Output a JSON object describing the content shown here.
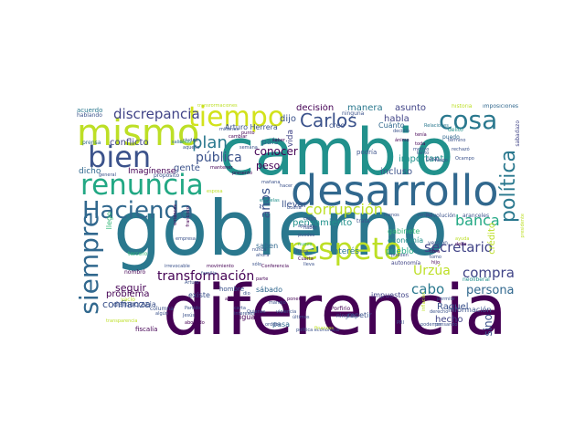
{
  "words": [
    {
      "text": "gobierno",
      "color": "#2a788e"
    },
    {
      "text": "diferencia",
      "color": "#440154"
    },
    {
      "text": "cambio",
      "color": "#21918c"
    },
    {
      "text": "desarrollo",
      "color": "#31688e"
    },
    {
      "text": "mismo",
      "color": "#bddf26"
    },
    {
      "text": "renuncia",
      "color": "#22a884"
    },
    {
      "text": "respeto",
      "color": "#bddf26"
    },
    {
      "text": "tiempo",
      "color": "#d2e21b"
    },
    {
      "text": "cosa",
      "color": "#2a788e"
    },
    {
      "text": "bien",
      "color": "#3b528b"
    },
    {
      "text": "Hacienda",
      "color": "#31688e"
    },
    {
      "text": "siempre",
      "color": "#31688e"
    },
    {
      "text": "política",
      "color": "#2a788e"
    },
    {
      "text": "Carlos",
      "color": "#3b528b"
    },
    {
      "text": "plan",
      "color": "#2a788e"
    },
    {
      "text": "discrepancia",
      "color": "#414487"
    },
    {
      "text": "transformación",
      "color": "#440154"
    },
    {
      "text": "corrupción",
      "color": "#bddf26"
    },
    {
      "text": "secretario",
      "color": "#414487"
    },
    {
      "text": "compra",
      "color": "#414487"
    },
    {
      "text": "banca",
      "color": "#22a884"
    },
    {
      "text": "pública",
      "color": "#3b528b"
    },
    {
      "text": "Urzúa",
      "color": "#bddf26"
    },
    {
      "text": "persona",
      "color": "#31688e"
    },
    {
      "text": "cabo",
      "color": "#2a788e"
    },
    {
      "text": "años",
      "color": "#3b528b"
    },
    {
      "text": "conflicto",
      "color": "#414487"
    },
    {
      "text": "gente",
      "color": "#3b528b"
    },
    {
      "text": "conocer",
      "color": "#440154"
    },
    {
      "text": "peso",
      "color": "#440154"
    },
    {
      "text": "problema",
      "color": "#440154"
    },
    {
      "text": "seguir",
      "color": "#440154"
    },
    {
      "text": "confianza",
      "color": "#3b528b"
    },
    {
      "text": "hecho",
      "color": "#414487"
    },
    {
      "text": "sino",
      "color": "#3b528b"
    },
    {
      "text": "Raquel",
      "color": "#3b528b"
    },
    {
      "text": "pensamiento",
      "color": "#21918c"
    },
    {
      "text": "importante",
      "color": "#21918c"
    },
    {
      "text": "incluso",
      "color": "#3b528b"
    },
    {
      "text": "llevar",
      "color": "#3b528b"
    },
    {
      "text": "manera",
      "color": "#2a788e"
    },
    {
      "text": "asunto",
      "color": "#414487"
    },
    {
      "text": "habla",
      "color": "#414487"
    },
    {
      "text": "decisión",
      "color": "#440154"
    },
    {
      "text": "dijo",
      "color": "#3b528b"
    },
    {
      "text": "vida",
      "color": "#414487"
    },
    {
      "text": "crédito",
      "color": "#bddf26"
    },
    {
      "text": "Imagínense",
      "color": "#440154"
    },
    {
      "text": "dicho",
      "color": "#31688e"
    },
    {
      "text": "interés",
      "color": "#2a788e"
    },
    {
      "text": "país",
      "color": "#31688e"
    },
    {
      "text": "pueblo",
      "color": "#22a884"
    },
    {
      "text": "economía",
      "color": "#21918c"
    },
    {
      "text": "gabinete",
      "color": "#35b779"
    },
    {
      "text": "creo",
      "color": "#3b528b"
    },
    {
      "text": "Arturo Herrera",
      "color": "#3b528b"
    },
    {
      "text": "Cuánto",
      "color": "#31688e"
    },
    {
      "text": "sábado",
      "color": "#31688e"
    },
    {
      "text": "repetir",
      "color": "#3b528b"
    },
    {
      "text": "democracia",
      "color": "#3b528b"
    },
    {
      "text": "llego",
      "color": "#35b779"
    },
    {
      "text": "saben",
      "color": "#31688e"
    },
    {
      "text": "impuestos",
      "color": "#414487"
    },
    {
      "text": "información",
      "color": "#3b528b"
    },
    {
      "text": "pasa",
      "color": "#31688e"
    },
    {
      "text": "existe",
      "color": "#3b528b"
    },
    {
      "text": "igual",
      "color": "#440154"
    },
    {
      "text": "hombre",
      "color": "#3b528b"
    },
    {
      "text": "fiscalía",
      "color": "#440154"
    },
    {
      "text": "acuerdo",
      "color": "#2a788e"
    },
    {
      "text": "hablando",
      "color": "#3b528b"
    },
    {
      "text": "prensa",
      "color": "#31688e"
    },
    {
      "text": "ninguna",
      "color": "#3b528b"
    },
    {
      "text": "transformaciones",
      "color": "#bddf26"
    },
    {
      "text": "imposiciones",
      "color": "#31688e"
    },
    {
      "text": "historia",
      "color": "#bddf26"
    },
    {
      "text": "Relaciones",
      "color": "#2a788e"
    },
    {
      "text": "decidió",
      "color": "#3b528b"
    },
    {
      "text": "puedo",
      "color": "#31688e"
    },
    {
      "text": "delito",
      "color": "#21918c"
    },
    {
      "text": "sabadazo",
      "color": "#414487"
    },
    {
      "text": "pasó",
      "color": "#3b528b"
    },
    {
      "text": "podría",
      "color": "#3b528b"
    },
    {
      "text": "Porfirio",
      "color": "#440154"
    },
    {
      "text": "ningún",
      "color": "#3b528b"
    },
    {
      "text": "Revolución",
      "color": "#3b528b"
    },
    {
      "text": "aranceles",
      "color": "#3b528b"
    },
    {
      "text": "versión",
      "color": "#3b528b"
    },
    {
      "text": "autonomía",
      "color": "#414487"
    },
    {
      "text": "neoliberal",
      "color": "#21918c"
    },
    {
      "text": "transparencia",
      "color": "#bddf26"
    },
    {
      "text": "Conferencia",
      "color": "#440154"
    },
    {
      "text": "tercero",
      "color": "#35b779"
    },
    {
      "text": "mantener",
      "color": "#440154"
    },
    {
      "text": "propósito",
      "color": "#3b528b"
    },
    {
      "text": "saber",
      "color": "#440154"
    },
    {
      "text": "trata",
      "color": "#3b528b"
    },
    {
      "text": "Cuarta",
      "color": "#440154"
    },
    {
      "text": "nombró",
      "color": "#440154"
    },
    {
      "text": "columna",
      "color": "#3b528b"
    },
    {
      "text": "vacío",
      "color": "#bddf26"
    },
    {
      "text": "parte",
      "color": "#440154"
    },
    {
      "text": "ciudad",
      "color": "#3b528b"
    },
    {
      "text": "punto",
      "color": "#440154"
    },
    {
      "text": "cambiar",
      "color": "#440154"
    },
    {
      "text": "millones",
      "color": "#3b528b"
    },
    {
      "text": "buena",
      "color": "#3b528b"
    },
    {
      "text": "saldo",
      "color": "#35b779"
    },
    {
      "text": "francisco",
      "color": "#440154"
    },
    {
      "text": "escuelas",
      "color": "#21918c"
    },
    {
      "text": "nuevo",
      "color": "#35b779"
    },
    {
      "text": "debe",
      "color": "#440154"
    },
    {
      "text": "podemos",
      "color": "#3b528b"
    },
    {
      "text": "política económica",
      "color": "#3b528b"
    },
    {
      "text": "últimos",
      "color": "#3b528b"
    },
    {
      "text": "finanzas",
      "color": "#bddf26"
    },
    {
      "text": "derecho",
      "color": "#3b528b"
    },
    {
      "text": "Ocampo",
      "color": "#3b528b"
    },
    {
      "text": "ánimo",
      "color": "#440154"
    },
    {
      "text": "motivo",
      "color": "#3b528b"
    },
    {
      "text": "puedes",
      "color": "#3b528b"
    },
    {
      "text": "manejo",
      "color": "#3b528b"
    },
    {
      "text": "violencia",
      "color": "#3b528b"
    },
    {
      "text": "semana",
      "color": "#3b528b"
    },
    {
      "text": "mañana",
      "color": "#3b528b"
    },
    {
      "text": "algún",
      "color": "#3b528b"
    },
    {
      "text": "abogado",
      "color": "#440154"
    },
    {
      "text": "PRI",
      "color": "#3b528b"
    },
    {
      "text": "ayuda",
      "color": "#bddf26"
    },
    {
      "text": "general",
      "color": "#3b528b"
    },
    {
      "text": "poner",
      "color": "#440154"
    },
    {
      "text": "Partido",
      "color": "#3b528b"
    },
    {
      "text": "carta",
      "color": "#3b528b"
    },
    {
      "text": "hijo",
      "color": "#440154"
    },
    {
      "text": "iba",
      "color": "#3b528b"
    },
    {
      "text": "tomo",
      "color": "#3b528b"
    },
    {
      "text": "orden",
      "color": "#3b528b"
    },
    {
      "text": "empresa",
      "color": "#3b528b"
    },
    {
      "text": "lleva",
      "color": "#3b528b"
    },
    {
      "text": "salió",
      "color": "#31688e"
    },
    {
      "text": "entonces",
      "color": "#440154"
    },
    {
      "text": "presentó",
      "color": "#440154"
    },
    {
      "text": "ahora",
      "color": "#3b528b"
    },
    {
      "text": "haber",
      "color": "#3b528b"
    },
    {
      "text": "cargo",
      "color": "#3b528b"
    },
    {
      "text": "dio",
      "color": "#3b528b"
    },
    {
      "text": "Jesús",
      "color": "#3b528b"
    },
    {
      "text": "intereses",
      "color": "#3b528b"
    },
    {
      "text": "aquello",
      "color": "#3b528b"
    },
    {
      "text": "toda",
      "color": "#440154"
    },
    {
      "text": "tanto",
      "color": "#3b528b"
    },
    {
      "text": "tenía",
      "color": "#440154"
    },
    {
      "text": "verdad",
      "color": "#3b528b"
    },
    {
      "text": "hacer",
      "color": "#3b528b"
    },
    {
      "text": "apenas",
      "color": "#3b528b"
    },
    {
      "text": "ahí",
      "color": "#440154"
    },
    {
      "text": "familia",
      "color": "#3b528b"
    },
    {
      "text": "Arturo",
      "color": "#3b528b"
    },
    {
      "text": "irrevocable",
      "color": "#3b528b"
    },
    {
      "text": "movimiento",
      "color": "#440154"
    },
    {
      "text": "pueden",
      "color": "#3b528b"
    },
    {
      "text": "nunca",
      "color": "#3b528b"
    },
    {
      "text": "menos",
      "color": "#3b528b"
    },
    {
      "text": "fuera",
      "color": "#3b528b"
    },
    {
      "text": "esposa",
      "color": "#bddf26"
    },
    {
      "text": "presidente",
      "color": "#bddf26"
    },
    {
      "text": "término",
      "color": "#3b528b"
    },
    {
      "text": "rechazó",
      "color": "#3b528b"
    },
    {
      "text": "sólo",
      "color": "#3b528b"
    },
    {
      "text": "Quienes",
      "color": "#3b528b"
    },
    {
      "text": "inflación",
      "color": "#bddf26"
    },
    {
      "text": "pensando",
      "color": "#3b528b"
    },
    {
      "text": "permitir",
      "color": "#3b528b"
    },
    {
      "text": "obra",
      "color": "#440154"
    },
    {
      "text": "luego",
      "color": "#3b528b"
    }
  ]
}
